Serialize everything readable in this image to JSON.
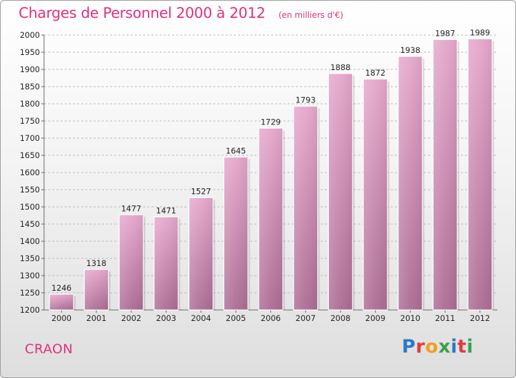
{
  "header": {
    "title": "Charges de Personnel 2000 à 2012",
    "unit": "(en milliers d'€)"
  },
  "place": "CRAON",
  "logo": {
    "letters": [
      "P",
      "r",
      "o",
      "x",
      "i",
      "t",
      "i"
    ],
    "colors": [
      "#2b79c8",
      "#e23a3a",
      "#f0a020",
      "#3aa04a",
      "#2b79c8",
      "#e23a3a",
      "#3aa04a"
    ]
  },
  "colors": {
    "accent": "#e0307f",
    "bar_top": "#e6a8cc",
    "bar_bottom": "#ad6d94"
  },
  "chart_data": {
    "type": "bar",
    "title": "Charges de Personnel 2000 à 2012",
    "subtitle": "(en milliers d'€)",
    "xlabel": "",
    "ylabel": "",
    "categories": [
      "2000",
      "2001",
      "2002",
      "2003",
      "2004",
      "2005",
      "2006",
      "2007",
      "2008",
      "2009",
      "2010",
      "2011",
      "2012"
    ],
    "values": [
      1246,
      1318,
      1477,
      1471,
      1527,
      1645,
      1729,
      1793,
      1888,
      1872,
      1938,
      1987,
      1989
    ],
    "ylim": [
      1200,
      2000
    ],
    "yticks": [
      1200,
      1250,
      1300,
      1350,
      1400,
      1450,
      1500,
      1550,
      1600,
      1650,
      1700,
      1750,
      1800,
      1850,
      1900,
      1950,
      2000
    ],
    "grid": true,
    "data_labels": true
  }
}
